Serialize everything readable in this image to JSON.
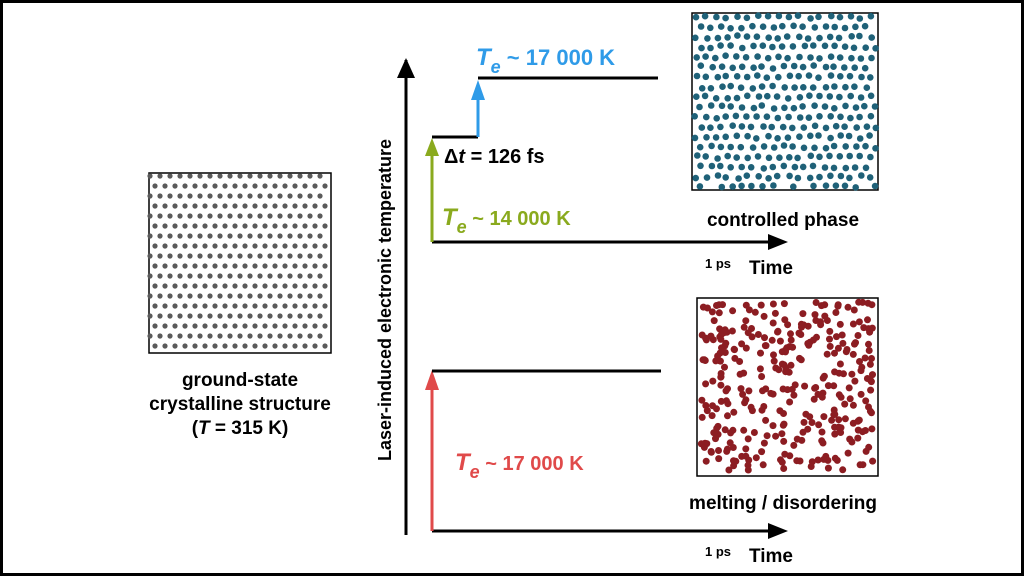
{
  "colors": {
    "blue": "#2f9be8",
    "green": "#8aaa1e",
    "red": "#e04a4a",
    "black": "#000000",
    "crystal": "#5a5a5a",
    "controlled": "#1f6178",
    "melting": "#8c1d22"
  },
  "left_panel": {
    "caption_line1": "ground-state",
    "caption_line2": "crystalline structure",
    "caption_paren_open": "(",
    "caption_var": "T",
    "caption_rest": " = 315 K)"
  },
  "y_axis_label": "Laser-induced electronic temperature",
  "top_plot": {
    "te_high_var": "T",
    "te_high_sub": "e",
    "te_high_value": " ~ 17 000 K",
    "delta_prefix": "Δ",
    "delta_var": "t",
    "delta_value": " = 126 fs",
    "te_low_var": "T",
    "te_low_sub": "e",
    "te_low_value": " ~ 14 000 K",
    "tick_label": "1 ps",
    "time_label": "Time",
    "panel_caption": "controlled phase"
  },
  "bottom_plot": {
    "te_var": "T",
    "te_sub": "e",
    "te_value": " ~ 17 000 K",
    "tick_label": "1 ps",
    "time_label": "Time",
    "panel_caption": "melting / disordering"
  }
}
